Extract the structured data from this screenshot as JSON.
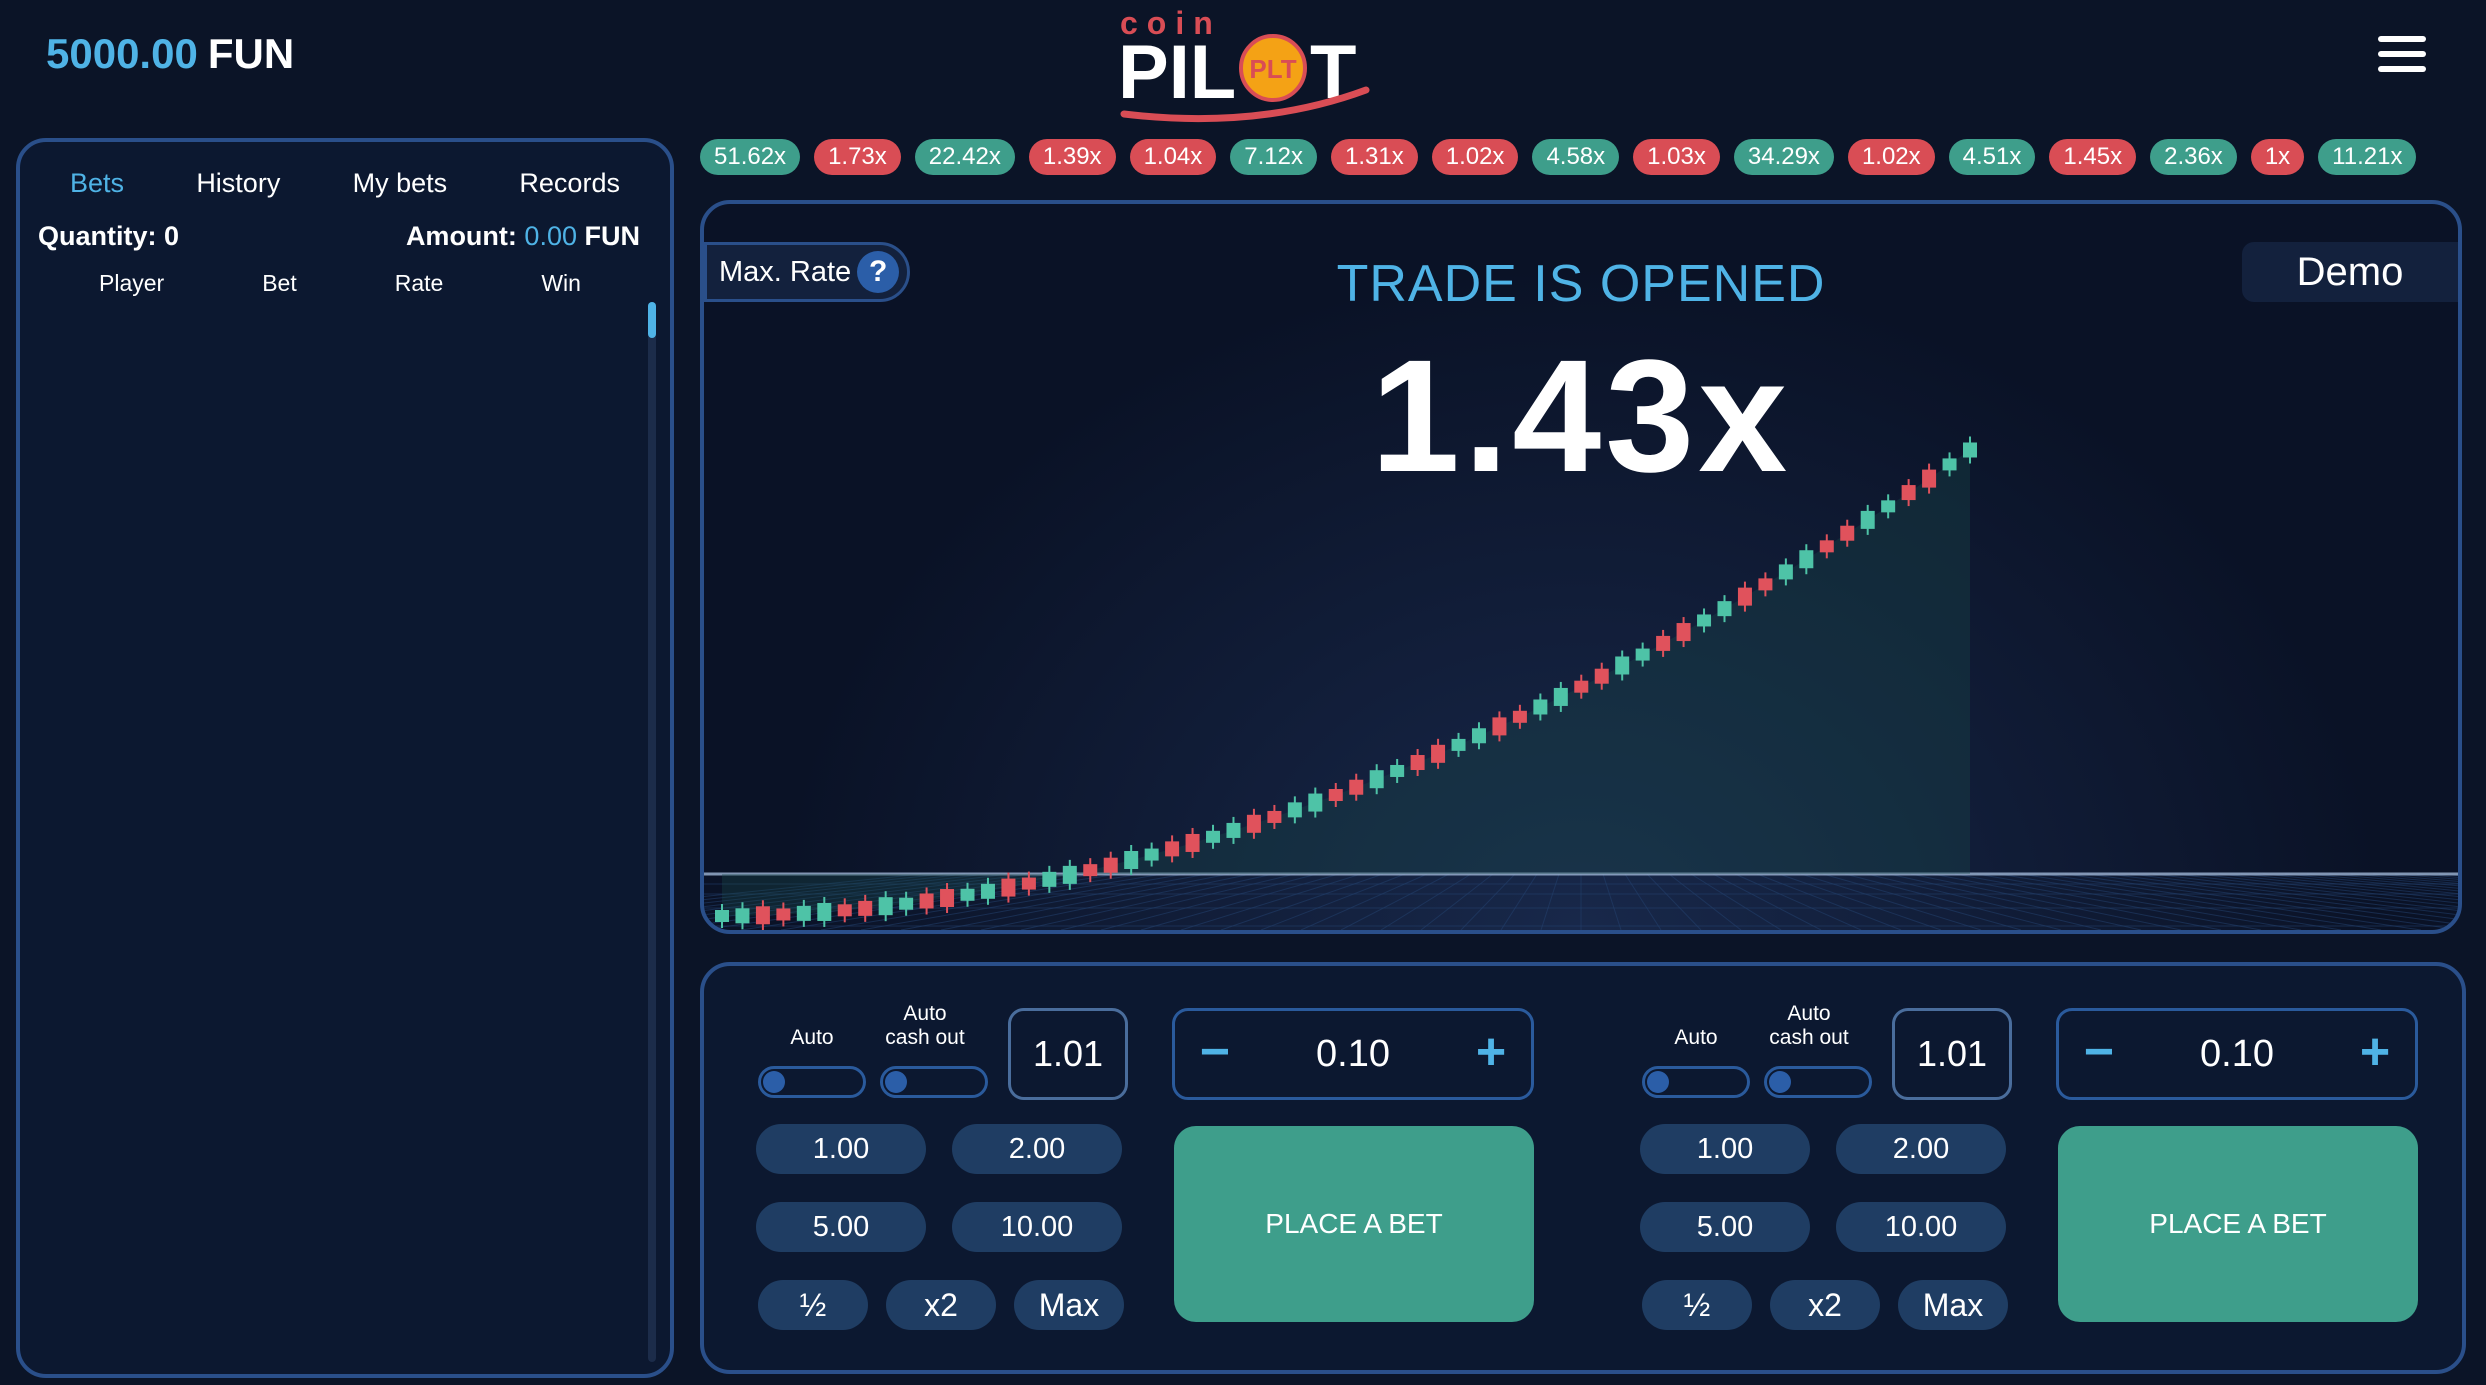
{
  "header": {
    "balance_amount": "5000.00",
    "balance_currency": "FUN",
    "logo_top": "coin",
    "logo_pil": "PIL",
    "logo_badge": "PLT",
    "logo_t": "T"
  },
  "left_panel": {
    "tabs": [
      "Bets",
      "History",
      "My bets",
      "Records"
    ],
    "active_tab": "Bets",
    "quantity_label": "Quantity:",
    "quantity_value": "0",
    "amount_label": "Amount:",
    "amount_value": "0.00",
    "amount_currency": "FUN",
    "columns": [
      "Player",
      "Bet",
      "Rate",
      "Win"
    ]
  },
  "multipliers": [
    {
      "value": "51.62x",
      "color": "green"
    },
    {
      "value": "1.73x",
      "color": "red"
    },
    {
      "value": "22.42x",
      "color": "green"
    },
    {
      "value": "1.39x",
      "color": "red"
    },
    {
      "value": "1.04x",
      "color": "red"
    },
    {
      "value": "7.12x",
      "color": "green"
    },
    {
      "value": "1.31x",
      "color": "red"
    },
    {
      "value": "1.02x",
      "color": "red"
    },
    {
      "value": "4.58x",
      "color": "green"
    },
    {
      "value": "1.03x",
      "color": "red"
    },
    {
      "value": "34.29x",
      "color": "green"
    },
    {
      "value": "1.02x",
      "color": "red"
    },
    {
      "value": "4.51x",
      "color": "green"
    },
    {
      "value": "1.45x",
      "color": "red"
    },
    {
      "value": "2.36x",
      "color": "green"
    },
    {
      "value": "1x",
      "color": "red"
    },
    {
      "value": "11.21x",
      "color": "green"
    }
  ],
  "game": {
    "max_rate_label": "Max. Rate",
    "help_glyph": "?",
    "mode_label": "Demo",
    "status": "TRADE IS OPENED",
    "current_rate": "1.43x"
  },
  "colors": {
    "accent": "#4fb3e6",
    "green": "#3e9e8b",
    "red": "#d94d55",
    "background": "#0b1427"
  },
  "bets": [
    {
      "auto_label": "Auto",
      "auto_cashout_label": "Auto\ncash out",
      "cashout_value": "1.01",
      "stake_value": "0.10",
      "minus_glyph": "−",
      "plus_glyph": "+",
      "quick": [
        "1.00",
        "2.00",
        "5.00",
        "10.00"
      ],
      "half_label": "½",
      "double_label": "x2",
      "max_label": "Max",
      "place_label": "PLACE A BET"
    },
    {
      "auto_label": "Auto",
      "auto_cashout_label": "Auto\ncash out",
      "cashout_value": "1.01",
      "stake_value": "0.10",
      "minus_glyph": "−",
      "plus_glyph": "+",
      "quick": [
        "1.00",
        "2.00",
        "5.00",
        "10.00"
      ],
      "half_label": "½",
      "double_label": "x2",
      "max_label": "Max",
      "place_label": "PLACE A BET"
    }
  ]
}
